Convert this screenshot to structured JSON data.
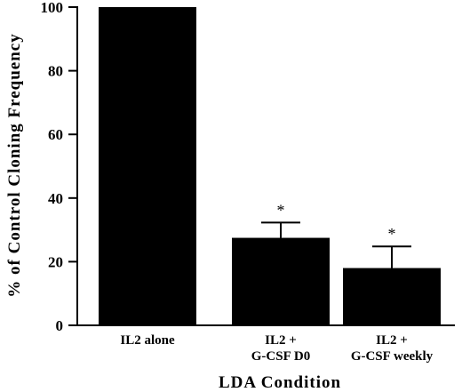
{
  "chart_data": {
    "type": "bar",
    "categories": [
      [
        "IL2  alone"
      ],
      [
        "IL2 +",
        "G-CSF  D0"
      ],
      [
        "IL2 +",
        "G-CSF  weekly"
      ]
    ],
    "values": [
      100,
      27.5,
      18
    ],
    "errors": [
      0,
      4.8,
      6.8
    ],
    "significance": [
      "",
      "*",
      "*"
    ],
    "xlabel": "LDA  Condition",
    "ylabel": "% of Control Cloning Frequency",
    "ylim": [
      0,
      100
    ],
    "yticks": [
      0,
      20,
      40,
      60,
      80,
      100
    ],
    "grid": false,
    "bar_color": "#000000"
  }
}
